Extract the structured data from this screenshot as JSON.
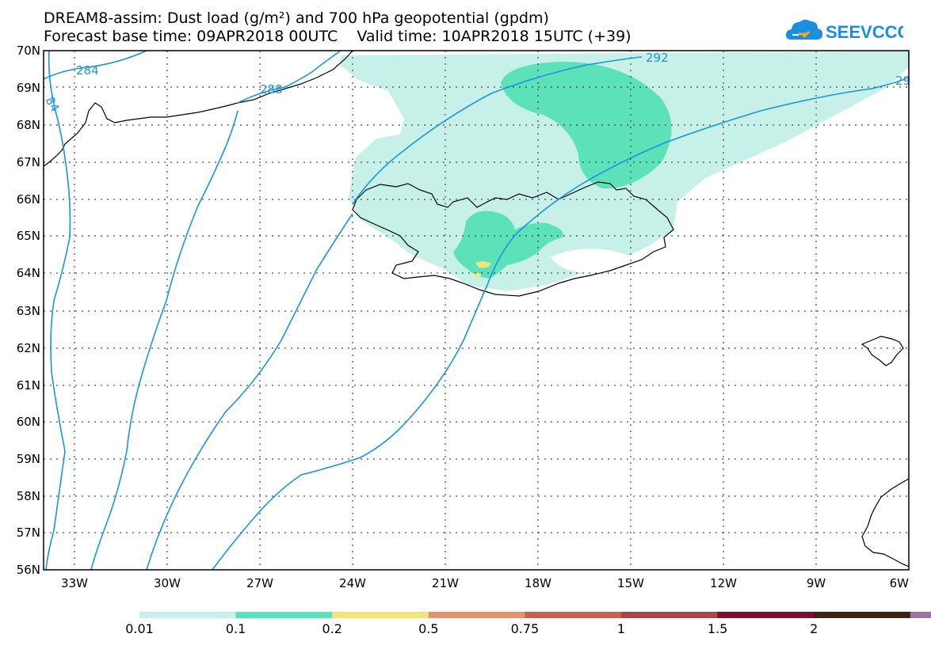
{
  "header": {
    "title_line1": "DREAM8-assim: Dust load (g/m²) and 700 hPa geopotential (gpdm)",
    "title_line2": "Forecast base time: 09APR2018 00UTC    Valid time: 10APR2018 15UTC (+39)"
  },
  "logo": {
    "text": "SEEVCCC",
    "color": "#1a8fe0",
    "icon": "cloud-icon"
  },
  "map": {
    "region": "Iceland / North Atlantic",
    "lat_labels": [
      "70N",
      "69N",
      "68N",
      "67N",
      "66N",
      "65N",
      "64N",
      "63N",
      "62N",
      "61N",
      "60N",
      "59N",
      "58N",
      "57N",
      "56N"
    ],
    "lon_labels": [
      "33W",
      "30W",
      "27W",
      "24W",
      "21W",
      "18W",
      "15W",
      "12W",
      "9W",
      "6W"
    ],
    "contour_color": "#1896e0",
    "contour_labels": [
      "284",
      "288",
      "292",
      "29",
      "84"
    ]
  },
  "colorbar": {
    "colors": [
      "#c6f0e8",
      "#5ce1b8",
      "#f2e67a",
      "#e6926a",
      "#c8604e",
      "#a64848",
      "#7a0f2e",
      "#3c2414",
      "#9a72a6"
    ],
    "labels": [
      "0.01",
      "0.1",
      "0.2",
      "0.5",
      "0.75",
      "1",
      "1.5",
      "2"
    ]
  }
}
